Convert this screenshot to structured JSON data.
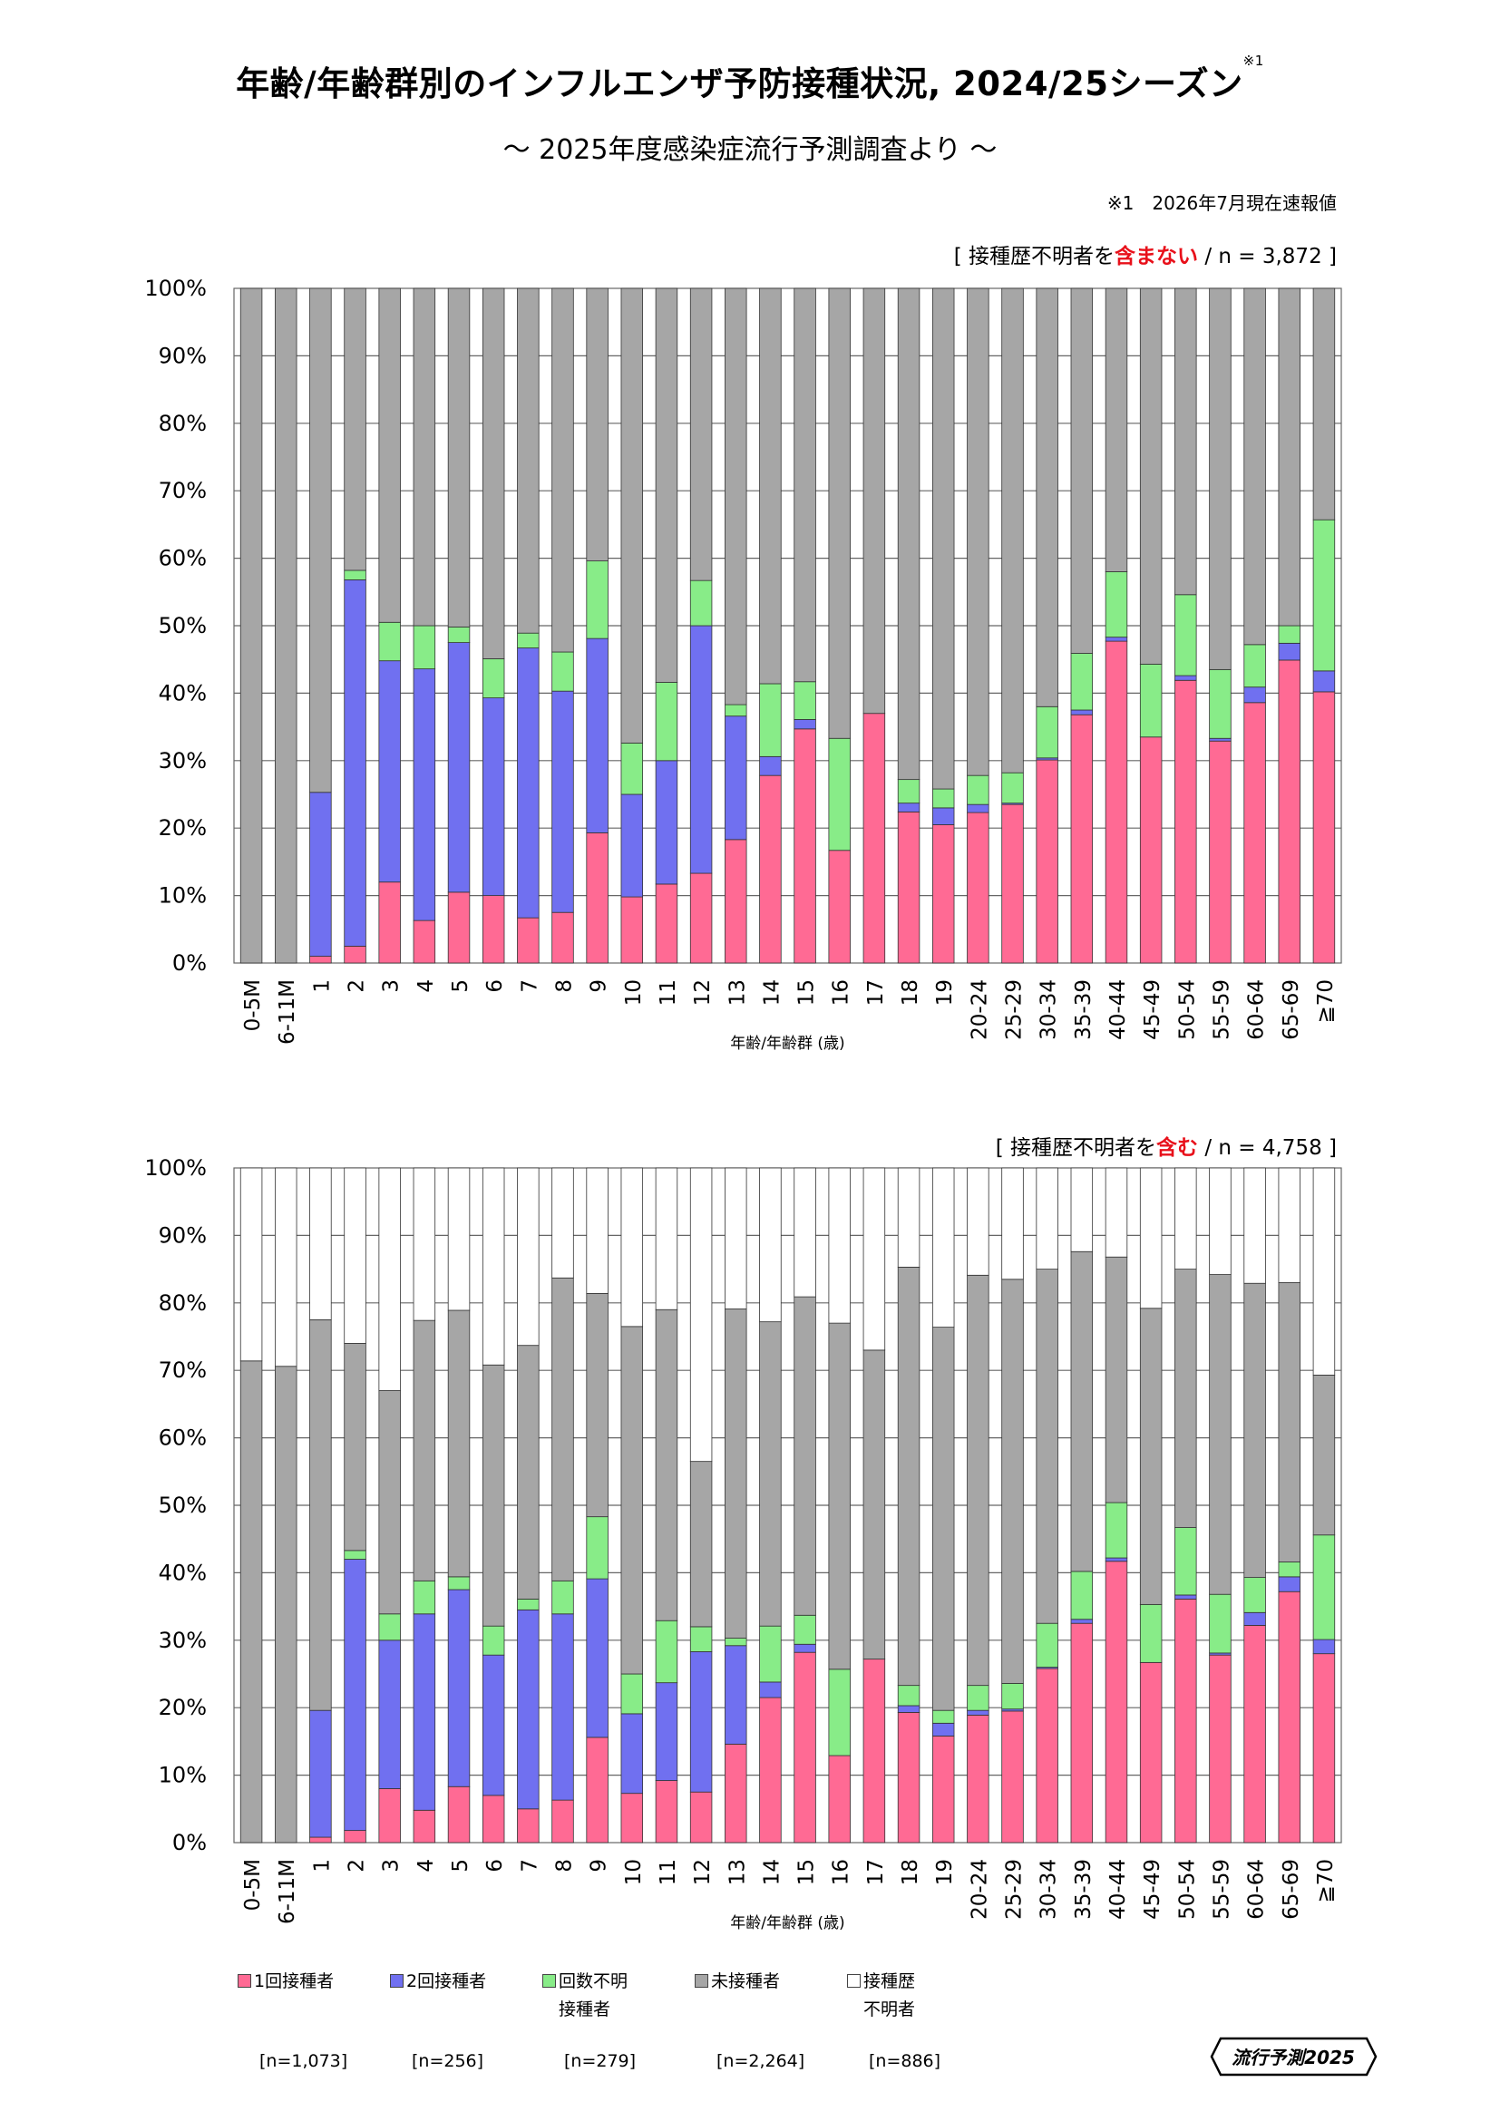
{
  "title": "年齢/年齢群別のインフルエンザ予防接種状況, 2024/25シーズン",
  "title_sup": "※1",
  "subtitle": "～ 2025年度感染症流行予測調査より ～",
  "note": "※1　2026年7月現在速報値",
  "xlabel": "年齢/年齢群 (歳)",
  "ylabel": "",
  "colors": {
    "one": "#ff6a94",
    "two": "#7070f0",
    "unk": "#88ec88",
    "none": "#a6a6a6",
    "hist": "#ffffff"
  },
  "legend": [
    {
      "key": "one",
      "label1": "1回接種者",
      "label2": "",
      "n": "[n=1,073]"
    },
    {
      "key": "two",
      "label1": "2回接種者",
      "label2": "",
      "n": "[n=256]"
    },
    {
      "key": "unk",
      "label1": "回数不明",
      "label2": "接種者",
      "n": "[n=279]"
    },
    {
      "key": "none",
      "label1": "未接種者",
      "label2": "",
      "n": "[n=2,264]"
    },
    {
      "key": "hist",
      "label1": "接種歴",
      "label2": "不明者",
      "n": "[n=886]"
    }
  ],
  "logo": "流行予測2025",
  "chart1_cond": {
    "pre": "[ 接種歴不明者を",
    "hl": "含まない",
    "post": " / n = 3,872 ]"
  },
  "chart2_cond": {
    "pre": "[ 接種歴不明者を",
    "hl": "含む",
    "post": " / n = 4,758 ]"
  },
  "chart_data": [
    {
      "type": "bar",
      "stacked": true,
      "xlabel": "年齢/年齢群 (歳)",
      "ylim": [
        0,
        100
      ],
      "yticks": [
        "0%",
        "10%",
        "20%",
        "30%",
        "40%",
        "50%",
        "60%",
        "70%",
        "80%",
        "90%",
        "100%"
      ],
      "categories": [
        "0-5M",
        "6-11M",
        "1",
        "2",
        "3",
        "4",
        "5",
        "6",
        "7",
        "8",
        "9",
        "10",
        "11",
        "12",
        "13",
        "14",
        "15",
        "16",
        "17",
        "18",
        "19",
        "20-24",
        "25-29",
        "30-34",
        "35-39",
        "40-44",
        "45-49",
        "50-54",
        "55-59",
        "60-64",
        "65-69",
        "≧70"
      ],
      "series": [
        {
          "name": "1回接種者",
          "key": "one",
          "values": [
            0,
            0,
            1,
            2.5,
            12,
            6.3,
            10.5,
            10,
            6.7,
            7.5,
            19.3,
            9.8,
            11.7,
            13.3,
            18.3,
            27.8,
            34.7,
            16.7,
            37,
            22.4,
            20.5,
            22.3,
            23.5,
            30.1,
            36.8,
            47.7,
            33.5,
            41.9,
            32.9,
            38.6,
            44.9,
            40.2
          ]
        },
        {
          "name": "2回接種者",
          "key": "two",
          "values": [
            0,
            0,
            24.3,
            54.3,
            32.8,
            37.3,
            37,
            29.3,
            40,
            32.8,
            28.8,
            15.2,
            18.3,
            36.7,
            18.3,
            2.8,
            1.4,
            0,
            0,
            1.3,
            2.5,
            1.2,
            0.2,
            0.3,
            0.7,
            0.6,
            0,
            0.7,
            0.4,
            2.3,
            2.5,
            3.1
          ]
        },
        {
          "name": "回数不明接種者",
          "key": "unk",
          "values": [
            0,
            0,
            0,
            1.4,
            5.7,
            6.4,
            2.3,
            5.8,
            2.2,
            5.8,
            11.5,
            7.6,
            11.6,
            6.7,
            1.7,
            10.8,
            5.6,
            16.6,
            0,
            3.5,
            2.8,
            4.3,
            4.5,
            7.6,
            8.4,
            9.7,
            10.8,
            12,
            10.2,
            6.3,
            2.6,
            22.4
          ]
        },
        {
          "name": "未接種者",
          "key": "none",
          "values": [
            100,
            100,
            74.7,
            41.8,
            49.5,
            50,
            50.2,
            54.9,
            51.1,
            53.9,
            40.4,
            67.4,
            58.4,
            43.3,
            61.7,
            58.6,
            58.3,
            66.7,
            63,
            72.8,
            74.2,
            72.2,
            71.8,
            62,
            54.1,
            42,
            55.7,
            45.4,
            56.5,
            52.8,
            50,
            34.3
          ]
        }
      ]
    },
    {
      "type": "bar",
      "stacked": true,
      "xlabel": "年齢/年齢群 (歳)",
      "ylim": [
        0,
        100
      ],
      "yticks": [
        "0%",
        "10%",
        "20%",
        "30%",
        "40%",
        "50%",
        "60%",
        "70%",
        "80%",
        "90%",
        "100%"
      ],
      "categories": [
        "0-5M",
        "6-11M",
        "1",
        "2",
        "3",
        "4",
        "5",
        "6",
        "7",
        "8",
        "9",
        "10",
        "11",
        "12",
        "13",
        "14",
        "15",
        "16",
        "17",
        "18",
        "19",
        "20-24",
        "25-29",
        "30-34",
        "35-39",
        "40-44",
        "45-49",
        "50-54",
        "55-59",
        "60-64",
        "65-69",
        "≧70"
      ],
      "series": [
        {
          "name": "1回接種者",
          "key": "one",
          "values": [
            0,
            0,
            0.8,
            1.8,
            8,
            4.8,
            8.3,
            7,
            5,
            6.3,
            15.6,
            7.3,
            9.2,
            7.5,
            14.6,
            21.5,
            28.2,
            12.9,
            27.2,
            19.3,
            15.8,
            18.9,
            19.5,
            25.8,
            32.5,
            41.7,
            26.7,
            36.1,
            27.8,
            32.2,
            37.2,
            28
          ]
        },
        {
          "name": "2回接種者",
          "key": "two",
          "values": [
            0,
            0,
            18.8,
            40.2,
            22,
            29.1,
            29.2,
            20.8,
            29.5,
            27.6,
            23.5,
            11.8,
            14.5,
            20.8,
            14.6,
            2.3,
            1.2,
            0,
            0,
            1,
            1.9,
            0.7,
            0.3,
            0.2,
            0.6,
            0.5,
            0,
            0.6,
            0.3,
            1.9,
            2.2,
            2.1
          ]
        },
        {
          "name": "回数不明接種者",
          "key": "unk",
          "values": [
            0,
            0,
            0,
            1.3,
            3.9,
            4.9,
            1.9,
            4.3,
            1.6,
            4.9,
            9.2,
            5.9,
            9.2,
            3.7,
            1.1,
            8.3,
            4.3,
            12.8,
            0,
            3,
            1.9,
            3.7,
            3.8,
            6.5,
            7.1,
            8.2,
            8.6,
            10,
            8.7,
            5.2,
            2.2,
            15.5
          ]
        },
        {
          "name": "未接種者",
          "key": "none",
          "values": [
            71.4,
            70.6,
            57.9,
            30.7,
            33.1,
            38.6,
            39.5,
            38.7,
            37.6,
            44.9,
            33.1,
            51.5,
            46.1,
            24.5,
            48.8,
            45.1,
            47.2,
            51.3,
            45.8,
            62,
            56.8,
            60.8,
            59.9,
            52.5,
            47.4,
            36.4,
            43.9,
            38.3,
            47.4,
            43.6,
            41.4,
            23.7
          ]
        },
        {
          "name": "接種歴不明者",
          "key": "hist",
          "values": [
            28.6,
            29.4,
            22.5,
            26,
            33,
            22.6,
            21.1,
            29.2,
            26.3,
            16.3,
            18.6,
            23.5,
            21,
            43.5,
            20.9,
            22.8,
            19.1,
            23,
            27,
            14.7,
            23.6,
            15.9,
            16.5,
            15,
            12.4,
            13.2,
            20.8,
            15,
            15.8,
            17.1,
            17,
            30.7
          ]
        }
      ]
    }
  ]
}
